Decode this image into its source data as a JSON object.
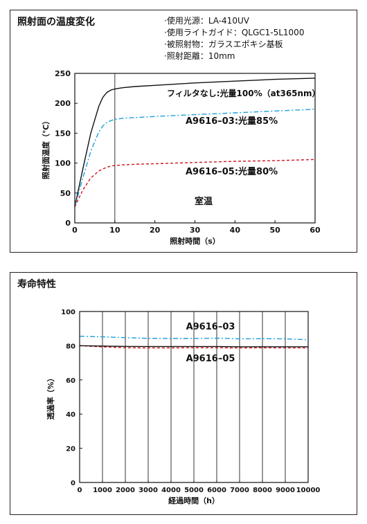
{
  "panel1": {
    "title": "照射面の温度変化",
    "conditions": [
      "·使用光源：LA-410UV",
      "·使用ライトガイド：QLGC1-5L1000",
      "·被照射物：ガラスエポキシ基板",
      "·照射距離：10mm"
    ]
  },
  "panel2": {
    "title": "寿命特性"
  },
  "colors": {
    "black": "#111111",
    "blue": "#1aa0dc",
    "red": "#d0101c"
  },
  "chart_data": [
    {
      "type": "line",
      "xlabel": "照射時間（s）",
      "ylabel": "照射面温度（℃）",
      "xlim": [
        0,
        60
      ],
      "ylim": [
        0,
        250
      ],
      "xticks": [
        0,
        10,
        20,
        30,
        40,
        50,
        60
      ],
      "yticks": [
        0,
        50,
        100,
        150,
        200,
        250
      ],
      "grid": "vertical line at x=10",
      "annotations": [
        "室温"
      ],
      "series": [
        {
          "name": "フィルタなし:光量100%（at365nm）",
          "color": "#111111",
          "style": "solid",
          "x": [
            0,
            2,
            4,
            6,
            7,
            8,
            9,
            10,
            11,
            12,
            15,
            20,
            30,
            40,
            50,
            60
          ],
          "y": [
            27,
            90,
            150,
            195,
            210,
            218,
            222,
            224,
            225,
            226,
            228,
            230,
            234,
            237,
            240,
            242
          ]
        },
        {
          "name": "A9616–03:光量85%",
          "color": "#1aa0dc",
          "style": "dashdot",
          "x": [
            0,
            2,
            4,
            6,
            7,
            8,
            9,
            10,
            12,
            15,
            20,
            30,
            40,
            50,
            60
          ],
          "y": [
            27,
            75,
            120,
            152,
            162,
            168,
            171,
            173,
            175,
            176,
            178,
            181,
            184,
            187,
            190
          ]
        },
        {
          "name": "A9616–05:光量80%",
          "color": "#d0101c",
          "style": "dashed",
          "x": [
            0,
            2,
            4,
            6,
            8,
            9,
            10,
            12,
            15,
            20,
            30,
            40,
            50,
            60
          ],
          "y": [
            27,
            55,
            75,
            87,
            93,
            95,
            96,
            97,
            98,
            99,
            101,
            103,
            104,
            106
          ]
        }
      ]
    },
    {
      "type": "line",
      "xlabel": "経過時間（h）",
      "ylabel": "透過率（%）",
      "xlim": [
        0,
        10000
      ],
      "ylim": [
        0,
        100
      ],
      "xticks": [
        0,
        1000,
        2000,
        3000,
        4000,
        5000,
        6000,
        7000,
        8000,
        9000,
        10000
      ],
      "yticks": [
        0,
        20,
        40,
        60,
        80,
        100
      ],
      "grid": "vertical lines at every 1000",
      "series": [
        {
          "name": "A9616–03",
          "color": "#1aa0dc",
          "style": "dashdot",
          "x": [
            0,
            1000,
            2000,
            3000,
            4000,
            5000,
            6000,
            7000,
            8000,
            9000,
            10000
          ],
          "y": [
            85.5,
            85.2,
            84.7,
            84.3,
            84.2,
            84.2,
            84.4,
            84.0,
            84.1,
            84.0,
            83.5
          ]
        },
        {
          "name": "A9616–05",
          "color": "#d0101c",
          "style": "dashed",
          "x": [
            0,
            1000,
            2000,
            3000,
            4000,
            5000,
            6000,
            7000,
            8000,
            9000,
            10000
          ],
          "y": [
            80.0,
            79.3,
            78.8,
            78.7,
            78.7,
            78.8,
            78.8,
            78.7,
            78.8,
            78.7,
            78.7
          ]
        },
        {
          "name": "",
          "color": "#111111",
          "style": "solid",
          "x": [
            0,
            1000,
            2000,
            3000,
            4000,
            5000,
            6000,
            7000,
            8000,
            9000,
            10000
          ],
          "y": [
            80.0,
            79.8,
            79.6,
            79.5,
            79.5,
            79.5,
            79.5,
            79.4,
            79.4,
            79.4,
            79.4
          ]
        }
      ]
    }
  ]
}
